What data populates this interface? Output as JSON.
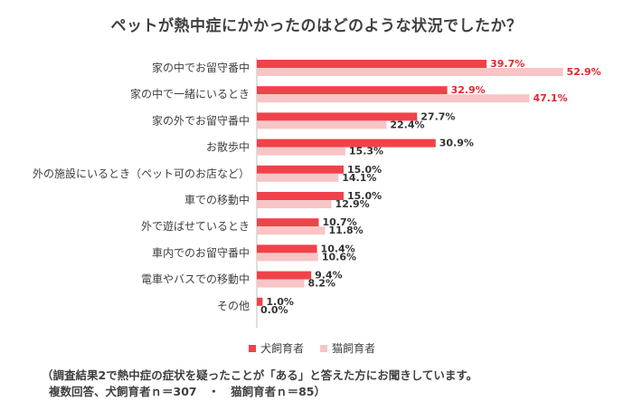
{
  "chart_data": {
    "type": "bar",
    "orientation": "horizontal",
    "title": "ペットが熱中症にかかったのはどのような状況でしたか？",
    "categories": [
      "家の中でお留守番中",
      "家の中で一緒にいるとき",
      "家の外でお留守番中",
      "お散歩中",
      "外の施設にいるとき（ペット可のお店など）",
      "車での移動中",
      "外で遊ばせているとき",
      "車内でのお留守番中",
      "電車やバスでの移動中",
      "その他"
    ],
    "series": [
      {
        "name": "犬飼育者",
        "color": "#f0424a",
        "values": [
          39.7,
          32.9,
          27.7,
          30.9,
          15.0,
          15.0,
          10.7,
          10.4,
          9.4,
          1.0
        ],
        "labels": [
          "39.7%",
          "32.9%",
          "27.7%",
          "30.9%",
          "15.0%",
          "15.0%",
          "10.7%",
          "10.4%",
          "9.4%",
          "1.0%"
        ]
      },
      {
        "name": "猫飼育者",
        "color": "#f7c5c6",
        "values": [
          52.9,
          47.1,
          22.4,
          15.3,
          14.1,
          12.9,
          11.8,
          10.6,
          8.2,
          0.0
        ],
        "labels": [
          "52.9%",
          "47.1%",
          "22.4%",
          "15.3%",
          "14.1%",
          "12.9%",
          "11.8%",
          "10.6%",
          "8.2%",
          "0.0%"
        ]
      }
    ],
    "highlight_color": "#e8262e",
    "label_color": "#333333",
    "legend_position": "bottom",
    "grid": false
  },
  "footnote": {
    "line1": "（調査結果2で熱中症の症状を疑ったことが「ある」と答えた方にお聞きしています。",
    "line2": "複数回答、犬飼育者ｎ＝307　・　猫飼育者ｎ＝85）"
  }
}
